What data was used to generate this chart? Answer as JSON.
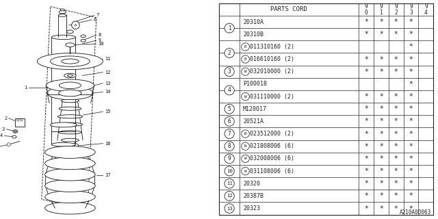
{
  "diagram_code": "A210A00063",
  "bg_color": "#ffffff",
  "line_color": "#222222",
  "table_rows": [
    {
      "ref": "1",
      "parts": [
        {
          "part": "20310A",
          "prefix": "",
          "suffix": "",
          "cols": [
            "*",
            "*",
            "*",
            "*",
            ""
          ]
        },
        {
          "part": "20310B",
          "prefix": "",
          "suffix": "",
          "cols": [
            "*",
            "*",
            "*",
            "*",
            ""
          ]
        }
      ]
    },
    {
      "ref": "2",
      "parts": [
        {
          "part": "011310160",
          "prefix": "B",
          "suffix": "(2)",
          "cols": [
            "",
            "",
            "",
            "*",
            ""
          ]
        },
        {
          "part": "016610160",
          "prefix": "B",
          "suffix": "(2)",
          "cols": [
            "*",
            "*",
            "*",
            "*",
            ""
          ]
        }
      ]
    },
    {
      "ref": "3",
      "parts": [
        {
          "part": "032010000",
          "prefix": "W",
          "suffix": "(2)",
          "cols": [
            "*",
            "*",
            "*",
            "*",
            ""
          ]
        }
      ]
    },
    {
      "ref": "4",
      "parts": [
        {
          "part": "P100018",
          "prefix": "",
          "suffix": "",
          "cols": [
            "",
            "",
            "",
            "*",
            ""
          ]
        },
        {
          "part": "031110000",
          "prefix": "W",
          "suffix": "(2)",
          "cols": [
            "*",
            "*",
            "*",
            "*",
            ""
          ]
        }
      ]
    },
    {
      "ref": "5",
      "parts": [
        {
          "part": "M120017",
          "prefix": "",
          "suffix": "",
          "cols": [
            "*",
            "*",
            "*",
            "*",
            ""
          ]
        }
      ]
    },
    {
      "ref": "6",
      "parts": [
        {
          "part": "20521A",
          "prefix": "",
          "suffix": "",
          "cols": [
            "*",
            "*",
            "*",
            "*",
            ""
          ]
        }
      ]
    },
    {
      "ref": "7",
      "parts": [
        {
          "part": "023512000",
          "prefix": "N",
          "suffix": "(2)",
          "cols": [
            "*",
            "*",
            "*",
            "*",
            ""
          ]
        }
      ]
    },
    {
      "ref": "8",
      "parts": [
        {
          "part": "021808006",
          "prefix": "N",
          "suffix": "(6)",
          "cols": [
            "*",
            "*",
            "*",
            "*",
            ""
          ]
        }
      ]
    },
    {
      "ref": "9",
      "parts": [
        {
          "part": "032008006",
          "prefix": "W",
          "suffix": "(6)",
          "cols": [
            "*",
            "*",
            "*",
            "*",
            ""
          ]
        }
      ]
    },
    {
      "ref": "10",
      "parts": [
        {
          "part": "031108006",
          "prefix": "W",
          "suffix": "(6)",
          "cols": [
            "*",
            "*",
            "*",
            "*",
            ""
          ]
        }
      ]
    },
    {
      "ref": "11",
      "parts": [
        {
          "part": "20320",
          "prefix": "",
          "suffix": "",
          "cols": [
            "*",
            "*",
            "*",
            "*",
            ""
          ]
        }
      ]
    },
    {
      "ref": "12",
      "parts": [
        {
          "part": "20387B",
          "prefix": "",
          "suffix": "",
          "cols": [
            "*",
            "*",
            "*",
            "*",
            ""
          ]
        }
      ]
    },
    {
      "ref": "13",
      "parts": [
        {
          "part": "20323",
          "prefix": "",
          "suffix": "",
          "cols": [
            "*",
            "*",
            "*",
            "*",
            ""
          ]
        }
      ]
    }
  ],
  "year_cols": [
    "9\n0",
    "9\n1",
    "9\n2",
    "9\n3",
    "9\n4"
  ]
}
